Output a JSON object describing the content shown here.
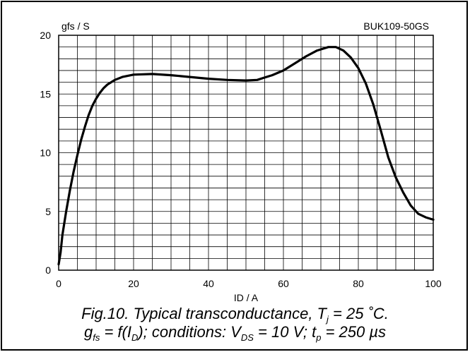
{
  "chart_data": {
    "type": "line",
    "device_label": "BUK109-50GS",
    "ylabel": "gfs / S",
    "xlabel": "ID / A",
    "xlim": [
      0,
      100
    ],
    "ylim": [
      0,
      20
    ],
    "x_ticks": [
      "0",
      "20",
      "40",
      "60",
      "80",
      "100"
    ],
    "y_ticks": [
      "0",
      "5",
      "10",
      "15",
      "20"
    ],
    "grid": true,
    "series": [
      {
        "x": [
          0,
          0.5,
          1,
          2,
          3,
          4,
          5,
          6,
          7,
          8,
          9,
          10,
          11,
          12,
          13,
          14,
          15,
          17,
          20,
          25,
          30,
          35,
          40,
          45,
          50,
          53,
          55,
          57,
          60,
          63,
          66,
          69,
          72,
          74,
          76,
          78,
          80,
          82,
          84,
          86,
          88,
          90,
          92,
          94,
          96,
          98,
          100
        ],
        "y": [
          0.5,
          1.5,
          3.0,
          5.0,
          6.8,
          8.4,
          9.8,
          11.1,
          12.2,
          13.2,
          14.0,
          14.6,
          15.1,
          15.5,
          15.8,
          16.0,
          16.2,
          16.45,
          16.65,
          16.7,
          16.6,
          16.45,
          16.3,
          16.2,
          16.15,
          16.2,
          16.4,
          16.6,
          17.0,
          17.6,
          18.2,
          18.7,
          19.0,
          19.0,
          18.7,
          18.1,
          17.2,
          15.9,
          14.1,
          11.9,
          9.6,
          7.9,
          6.6,
          5.5,
          4.8,
          4.5,
          4.3
        ]
      }
    ]
  },
  "caption": {
    "line1": {
      "prefix": "Fig.10.   Typical transconductance, T",
      "sub1": "j",
      "suffix": " = 25 ˚C."
    },
    "line2": {
      "g": "g",
      "g_sub": "fs",
      "part1": " = f(I",
      "i_sub": "D",
      "part2": "); conditions: V",
      "v_sub": "DS",
      "part3": " = 10 V; t",
      "t_sub": "p",
      "part4": " = 250 µs"
    }
  }
}
